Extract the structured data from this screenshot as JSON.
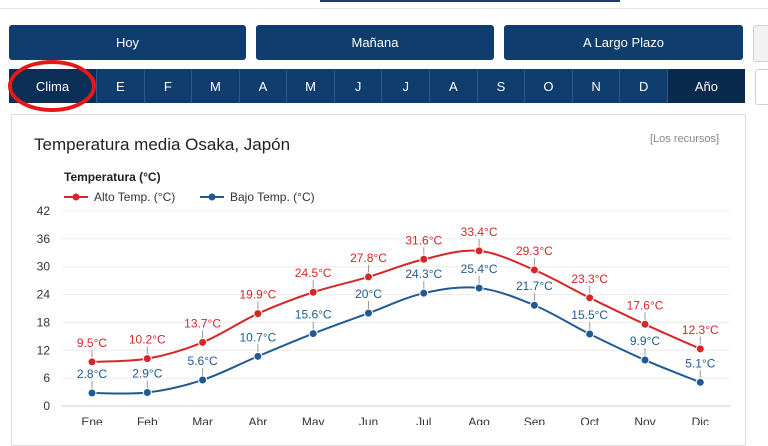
{
  "nav": {
    "today": "Hoy",
    "tomorrow": "Mañana",
    "long_term": "A Largo Plazo"
  },
  "months_bar": {
    "climate_tab": "Clima",
    "months": [
      "E",
      "F",
      "M",
      "A",
      "M",
      "J",
      "J",
      "A",
      "S",
      "O",
      "N",
      "D"
    ],
    "year_tab": "Año"
  },
  "card": {
    "title": "Temperatura media Osaka, Japón",
    "resources_link": "[Los recursos]"
  },
  "colors": {
    "nav_blue": "#0e3d6e",
    "high_series": "#d62728",
    "low_series": "#1f5a94",
    "annotation_circle": "#e41a1a"
  },
  "chart_data": {
    "type": "line",
    "ylabel": "Temperatura (°C)",
    "ylim": [
      0,
      42
    ],
    "yticks": [
      0,
      6,
      12,
      18,
      24,
      30,
      36,
      42
    ],
    "legend_position": "top-left",
    "categories": [
      "Ene",
      "Feb",
      "Mar",
      "Abr",
      "May",
      "Jun",
      "Jul",
      "Ago",
      "Sep",
      "Oct",
      "Nov",
      "Dic"
    ],
    "series": [
      {
        "name": "Alto Temp. (°C)",
        "color": "#d62728",
        "values": [
          9.5,
          10.2,
          13.7,
          19.9,
          24.5,
          27.8,
          31.6,
          33.4,
          29.3,
          23.3,
          17.6,
          12.3
        ],
        "labels": [
          "9.5°C",
          "10.2°C",
          "13.7°C",
          "19.9°C",
          "24.5°C",
          "27.8°C",
          "31.6°C",
          "33.4°C",
          "29.3°C",
          "23.3°C",
          "17.6°C",
          "12.3°C"
        ]
      },
      {
        "name": "Bajo Temp. (°C)",
        "color": "#1f5a94",
        "values": [
          2.8,
          2.9,
          5.6,
          10.7,
          15.6,
          20,
          24.3,
          25.4,
          21.7,
          15.5,
          9.9,
          5.1
        ],
        "labels": [
          "2.8°C",
          "2.9°C",
          "5.6°C",
          "10.7°C",
          "15.6°C",
          "20°C",
          "24.3°C",
          "25.4°C",
          "21.7°C",
          "15.5°C",
          "9.9°C",
          "5.1°C"
        ]
      }
    ]
  }
}
